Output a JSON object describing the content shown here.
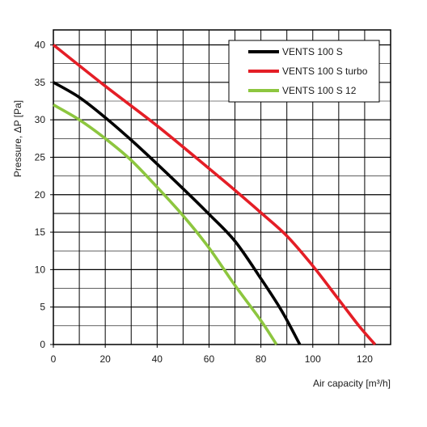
{
  "chart_data": {
    "type": "line",
    "xlabel": "Air capacity [m³/h]",
    "ylabel": "Pressure, ΔP [Pa]",
    "xlim": [
      0,
      130
    ],
    "ylim": [
      0,
      42
    ],
    "x_ticks": [
      0,
      20,
      40,
      60,
      80,
      100,
      120
    ],
    "y_ticks": [
      0,
      5,
      10,
      15,
      20,
      25,
      30,
      35,
      40
    ],
    "extra_h_gridlines": [
      17.5
    ],
    "grid": true,
    "legend_position": "top-right",
    "series": [
      {
        "name": "VENTS 100 S",
        "color": "#000000",
        "points": [
          [
            0,
            35
          ],
          [
            10,
            33
          ],
          [
            20,
            30.3
          ],
          [
            30,
            27.3
          ],
          [
            40,
            24.1
          ],
          [
            50,
            20.8
          ],
          [
            60,
            17.4
          ],
          [
            70,
            13.8
          ],
          [
            80,
            8.8
          ],
          [
            88,
            4.5
          ],
          [
            95,
            0
          ]
        ]
      },
      {
        "name": "VENTS 100 S turbo",
        "color": "#e41e26",
        "points": [
          [
            0,
            40
          ],
          [
            20,
            34.5
          ],
          [
            40,
            29.2
          ],
          [
            60,
            23.5
          ],
          [
            70,
            20.6
          ],
          [
            80,
            17.6
          ],
          [
            90,
            14.5
          ],
          [
            100,
            10.5
          ],
          [
            110,
            6
          ],
          [
            118,
            2.4
          ],
          [
            124,
            0
          ]
        ]
      },
      {
        "name": "VENTS 100 S 12",
        "color": "#8dc63f",
        "points": [
          [
            0,
            32
          ],
          [
            10,
            30
          ],
          [
            20,
            27.5
          ],
          [
            30,
            24.6
          ],
          [
            40,
            21
          ],
          [
            50,
            17.2
          ],
          [
            60,
            12.9
          ],
          [
            70,
            7.9
          ],
          [
            80,
            3.2
          ],
          [
            86,
            0
          ]
        ]
      }
    ]
  }
}
